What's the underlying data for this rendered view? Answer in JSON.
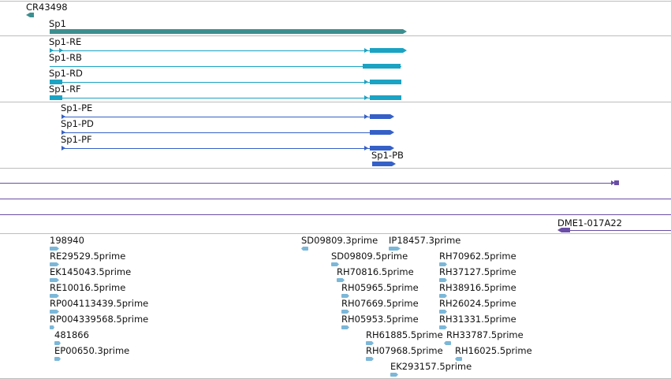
{
  "colors": {
    "gene": "#3d8f8f",
    "transcript": "#1aa3c3",
    "protein": "#3560c7",
    "repeat": "#6a4ea6",
    "est": "#7cb7d8",
    "divider": "#bdbdbd"
  },
  "tracks": {
    "genes": [
      {
        "label": "CR43498"
      },
      {
        "label": "Sp1"
      }
    ],
    "transcripts": [
      {
        "label": "Sp1-RE"
      },
      {
        "label": "Sp1-RB"
      },
      {
        "label": "Sp1-RD"
      },
      {
        "label": "Sp1-RF"
      }
    ],
    "proteins": [
      {
        "label": "Sp1-PE"
      },
      {
        "label": "Sp1-PD"
      },
      {
        "label": "Sp1-PF"
      },
      {
        "label": "Sp1-PB"
      }
    ],
    "repeat": {
      "label": "DME1-017A22"
    },
    "ests": [
      {
        "label": "198940"
      },
      {
        "label": "RE29529.5prime"
      },
      {
        "label": "EK145043.5prime"
      },
      {
        "label": "RE10016.5prime"
      },
      {
        "label": "RP004113439.5prime"
      },
      {
        "label": "RP004339568.5prime"
      },
      {
        "label": "481866"
      },
      {
        "label": "EP00650.3prime"
      },
      {
        "label": "SD09809.3prime"
      },
      {
        "label": "IP18457.3prime"
      },
      {
        "label": "SD09809.5prime"
      },
      {
        "label": "RH70816.5prime"
      },
      {
        "label": "RH05965.5prime"
      },
      {
        "label": "RH07669.5prime"
      },
      {
        "label": "RH05953.5prime"
      },
      {
        "label": "RH61885.5prime"
      },
      {
        "label": "RH07968.5prime"
      },
      {
        "label": "EK293157.5prime"
      },
      {
        "label": "RH70962.5prime"
      },
      {
        "label": "RH37127.5prime"
      },
      {
        "label": "RH38916.5prime"
      },
      {
        "label": "RH26024.5prime"
      },
      {
        "label": "RH31331.5prime"
      },
      {
        "label": "RH33787.5prime"
      },
      {
        "label": "RH16025.5prime"
      }
    ]
  }
}
